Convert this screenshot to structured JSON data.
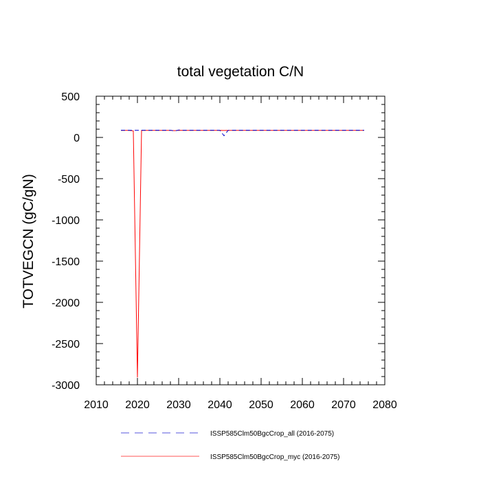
{
  "chart_data": {
    "type": "line",
    "title": "total vegetation C/N",
    "xlabel": "",
    "ylabel": "TOTVEGCN  (gC/gN)",
    "xlim": [
      2010,
      2080
    ],
    "ylim": [
      -3000,
      500
    ],
    "xticks": [
      2010,
      2020,
      2030,
      2040,
      2050,
      2060,
      2070,
      2080
    ],
    "yticks": [
      -3000,
      -2500,
      -2000,
      -1500,
      -1000,
      -500,
      0,
      500
    ],
    "xtick_labels": [
      "2010",
      "2020",
      "2030",
      "2040",
      "2050",
      "2060",
      "2070",
      "2080"
    ],
    "ytick_labels": [
      "-3000",
      "-2500",
      "-2000",
      "-1500",
      "-1000",
      "-500",
      "0",
      "500"
    ],
    "grid": false,
    "legend_position": "bottom",
    "series": [
      {
        "name": "ISSP585Clm50BgcCrop_all (2016-2075)",
        "color": "#0000cc",
        "dash": "dashed",
        "x": [
          2016,
          2017,
          2018,
          2019,
          2020,
          2021,
          2022,
          2023,
          2024,
          2025,
          2026,
          2027,
          2028,
          2029,
          2030,
          2031,
          2032,
          2033,
          2034,
          2035,
          2036,
          2037,
          2038,
          2039,
          2040,
          2041,
          2042,
          2043,
          2044,
          2045,
          2046,
          2047,
          2048,
          2049,
          2050,
          2051,
          2052,
          2053,
          2054,
          2055,
          2056,
          2057,
          2058,
          2059,
          2060,
          2061,
          2062,
          2063,
          2064,
          2065,
          2066,
          2067,
          2068,
          2069,
          2070,
          2071,
          2072,
          2073,
          2074,
          2075
        ],
        "values": [
          88,
          88,
          88,
          86,
          86,
          88,
          87,
          88,
          88,
          88,
          88,
          88,
          88,
          78,
          90,
          88,
          88,
          88,
          88,
          88,
          88,
          88,
          88,
          88,
          87,
          20,
          86,
          88,
          88,
          88,
          88,
          88,
          88,
          88,
          88,
          88,
          88,
          88,
          88,
          88,
          88,
          88,
          88,
          88,
          88,
          88,
          88,
          88,
          88,
          88,
          88,
          88,
          88,
          88,
          88,
          88,
          88,
          88,
          88,
          88
        ]
      },
      {
        "name": "ISSP585Clm50BgcCrop_myc (2016-2075)",
        "color": "#ff0000",
        "dash": "solid",
        "x": [
          2016,
          2017,
          2018,
          2019,
          2020,
          2021,
          2022,
          2023,
          2024,
          2025,
          2026,
          2027,
          2028,
          2029,
          2030,
          2031,
          2032,
          2033,
          2034,
          2035,
          2036,
          2037,
          2038,
          2039,
          2040,
          2041,
          2042,
          2043,
          2044,
          2045,
          2046,
          2047,
          2048,
          2049,
          2050,
          2051,
          2052,
          2053,
          2054,
          2055,
          2056,
          2057,
          2058,
          2059,
          2060,
          2061,
          2062,
          2063,
          2064,
          2065,
          2066,
          2067,
          2068,
          2069,
          2070,
          2071,
          2072,
          2073,
          2074,
          2075
        ],
        "values": [
          85,
          85,
          85,
          80,
          -2910,
          85,
          85,
          85,
          85,
          85,
          85,
          85,
          85,
          82,
          86,
          85,
          85,
          85,
          85,
          85,
          85,
          85,
          85,
          85,
          85,
          84,
          85,
          85,
          85,
          85,
          85,
          85,
          85,
          85,
          85,
          85,
          85,
          85,
          85,
          85,
          85,
          85,
          85,
          85,
          85,
          85,
          85,
          85,
          85,
          85,
          85,
          85,
          85,
          85,
          85,
          85,
          85,
          85,
          85,
          85
        ]
      }
    ]
  }
}
